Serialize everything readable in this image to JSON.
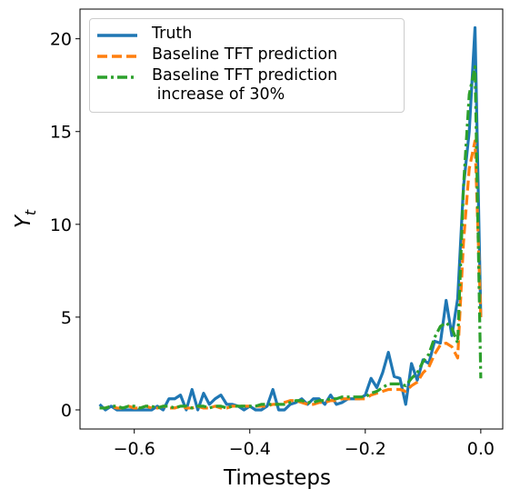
{
  "chart_data": {
    "type": "line",
    "xlabel": "Timesteps",
    "ylabel": "Y",
    "ylabel_sub": "t",
    "x": [
      -0.66,
      -0.65,
      -0.64,
      -0.63,
      -0.62,
      -0.61,
      -0.6,
      -0.59,
      -0.58,
      -0.57,
      -0.56,
      -0.55,
      -0.54,
      -0.53,
      -0.52,
      -0.51,
      -0.5,
      -0.49,
      -0.48,
      -0.47,
      -0.46,
      -0.45,
      -0.44,
      -0.43,
      -0.42,
      -0.41,
      -0.4,
      -0.39,
      -0.38,
      -0.37,
      -0.36,
      -0.35,
      -0.34,
      -0.33,
      -0.32,
      -0.31,
      -0.3,
      -0.29,
      -0.28,
      -0.27,
      -0.26,
      -0.25,
      -0.24,
      -0.23,
      -0.22,
      -0.21,
      -0.2,
      -0.19,
      -0.18,
      -0.17,
      -0.16,
      -0.15,
      -0.14,
      -0.13,
      -0.12,
      -0.11,
      -0.1,
      -0.09,
      -0.08,
      -0.07,
      -0.06,
      -0.05,
      -0.04,
      -0.03,
      -0.02,
      -0.01,
      0
    ],
    "series": [
      {
        "name": "Truth",
        "color": "#1f77b4",
        "style": "solid",
        "values": [
          0.3,
          0,
          0.2,
          0,
          0,
          0,
          0,
          0,
          0,
          0,
          0.2,
          0,
          0.6,
          0.6,
          0.8,
          0,
          1.1,
          0,
          0.9,
          0.3,
          0.6,
          0.8,
          0.3,
          0.3,
          0.2,
          0,
          0.2,
          0,
          0,
          0.2,
          1.1,
          0,
          0,
          0.3,
          0.4,
          0.6,
          0.3,
          0.6,
          0.6,
          0.3,
          0.8,
          0.3,
          0.4,
          0.6,
          0.6,
          0.6,
          0.8,
          1.7,
          1.2,
          2,
          3.1,
          1.8,
          1.7,
          0.3,
          2.5,
          1.6,
          2.7,
          2.5,
          3.7,
          3.6,
          5.9,
          4,
          6,
          12,
          15,
          20.6,
          5
        ]
      },
      {
        "name": "Baseline TFT prediction",
        "color": "#ff7f0e",
        "style": "dashed",
        "values": [
          0.1,
          0.1,
          0.2,
          0.1,
          0.1,
          0.2,
          0.1,
          0.1,
          0.2,
          0.1,
          0.1,
          0.2,
          0.1,
          0.1,
          0.2,
          0.1,
          0.1,
          0.2,
          0.1,
          0.1,
          0.2,
          0.1,
          0.1,
          0.2,
          0.2,
          0.2,
          0.2,
          0.2,
          0.2,
          0.2,
          0.3,
          0.3,
          0.4,
          0.5,
          0.5,
          0.4,
          0.3,
          0.3,
          0.4,
          0.4,
          0.5,
          0.5,
          0.6,
          0.6,
          0.6,
          0.6,
          0.6,
          0.8,
          0.9,
          1,
          1.1,
          1.1,
          1.1,
          1,
          1.3,
          1.5,
          2,
          2.3,
          3,
          3.5,
          3.6,
          3.4,
          2.8,
          9,
          13,
          14.5,
          5
        ]
      },
      {
        "name": "Baseline TFT prediction\n increase of 30%",
        "color": "#2ca02c",
        "style": "dashdot",
        "values": [
          0.1,
          0.1,
          0.2,
          0.2,
          0.1,
          0.2,
          0.2,
          0.1,
          0.2,
          0.2,
          0.1,
          0.2,
          0.2,
          0.1,
          0.2,
          0.2,
          0.1,
          0.2,
          0.2,
          0.1,
          0.2,
          0.2,
          0.1,
          0.2,
          0.2,
          0.2,
          0.2,
          0.2,
          0.3,
          0.3,
          0.3,
          0.3,
          0.3,
          0.4,
          0.5,
          0.5,
          0.4,
          0.4,
          0.5,
          0.5,
          0.6,
          0.6,
          0.7,
          0.7,
          0.7,
          0.7,
          0.7,
          0.9,
          1,
          1.2,
          1.4,
          1.4,
          1.4,
          1.3,
          1.7,
          2,
          2.6,
          3,
          3.9,
          4.5,
          4.7,
          4.4,
          3.6,
          12,
          17,
          18.5,
          1.7
        ]
      }
    ],
    "xlim": [
      -0.694,
      0.038
    ],
    "xticks": [
      {
        "value": -0.6,
        "label": "−0.6"
      },
      {
        "value": -0.4,
        "label": "−0.4"
      },
      {
        "value": -0.2,
        "label": "−0.2"
      },
      {
        "value": 0,
        "label": "0.0"
      }
    ],
    "ylim": [
      -1.03,
      21.6
    ],
    "yticks": [
      0,
      5,
      10,
      15,
      20
    ],
    "legend": "upper left"
  }
}
